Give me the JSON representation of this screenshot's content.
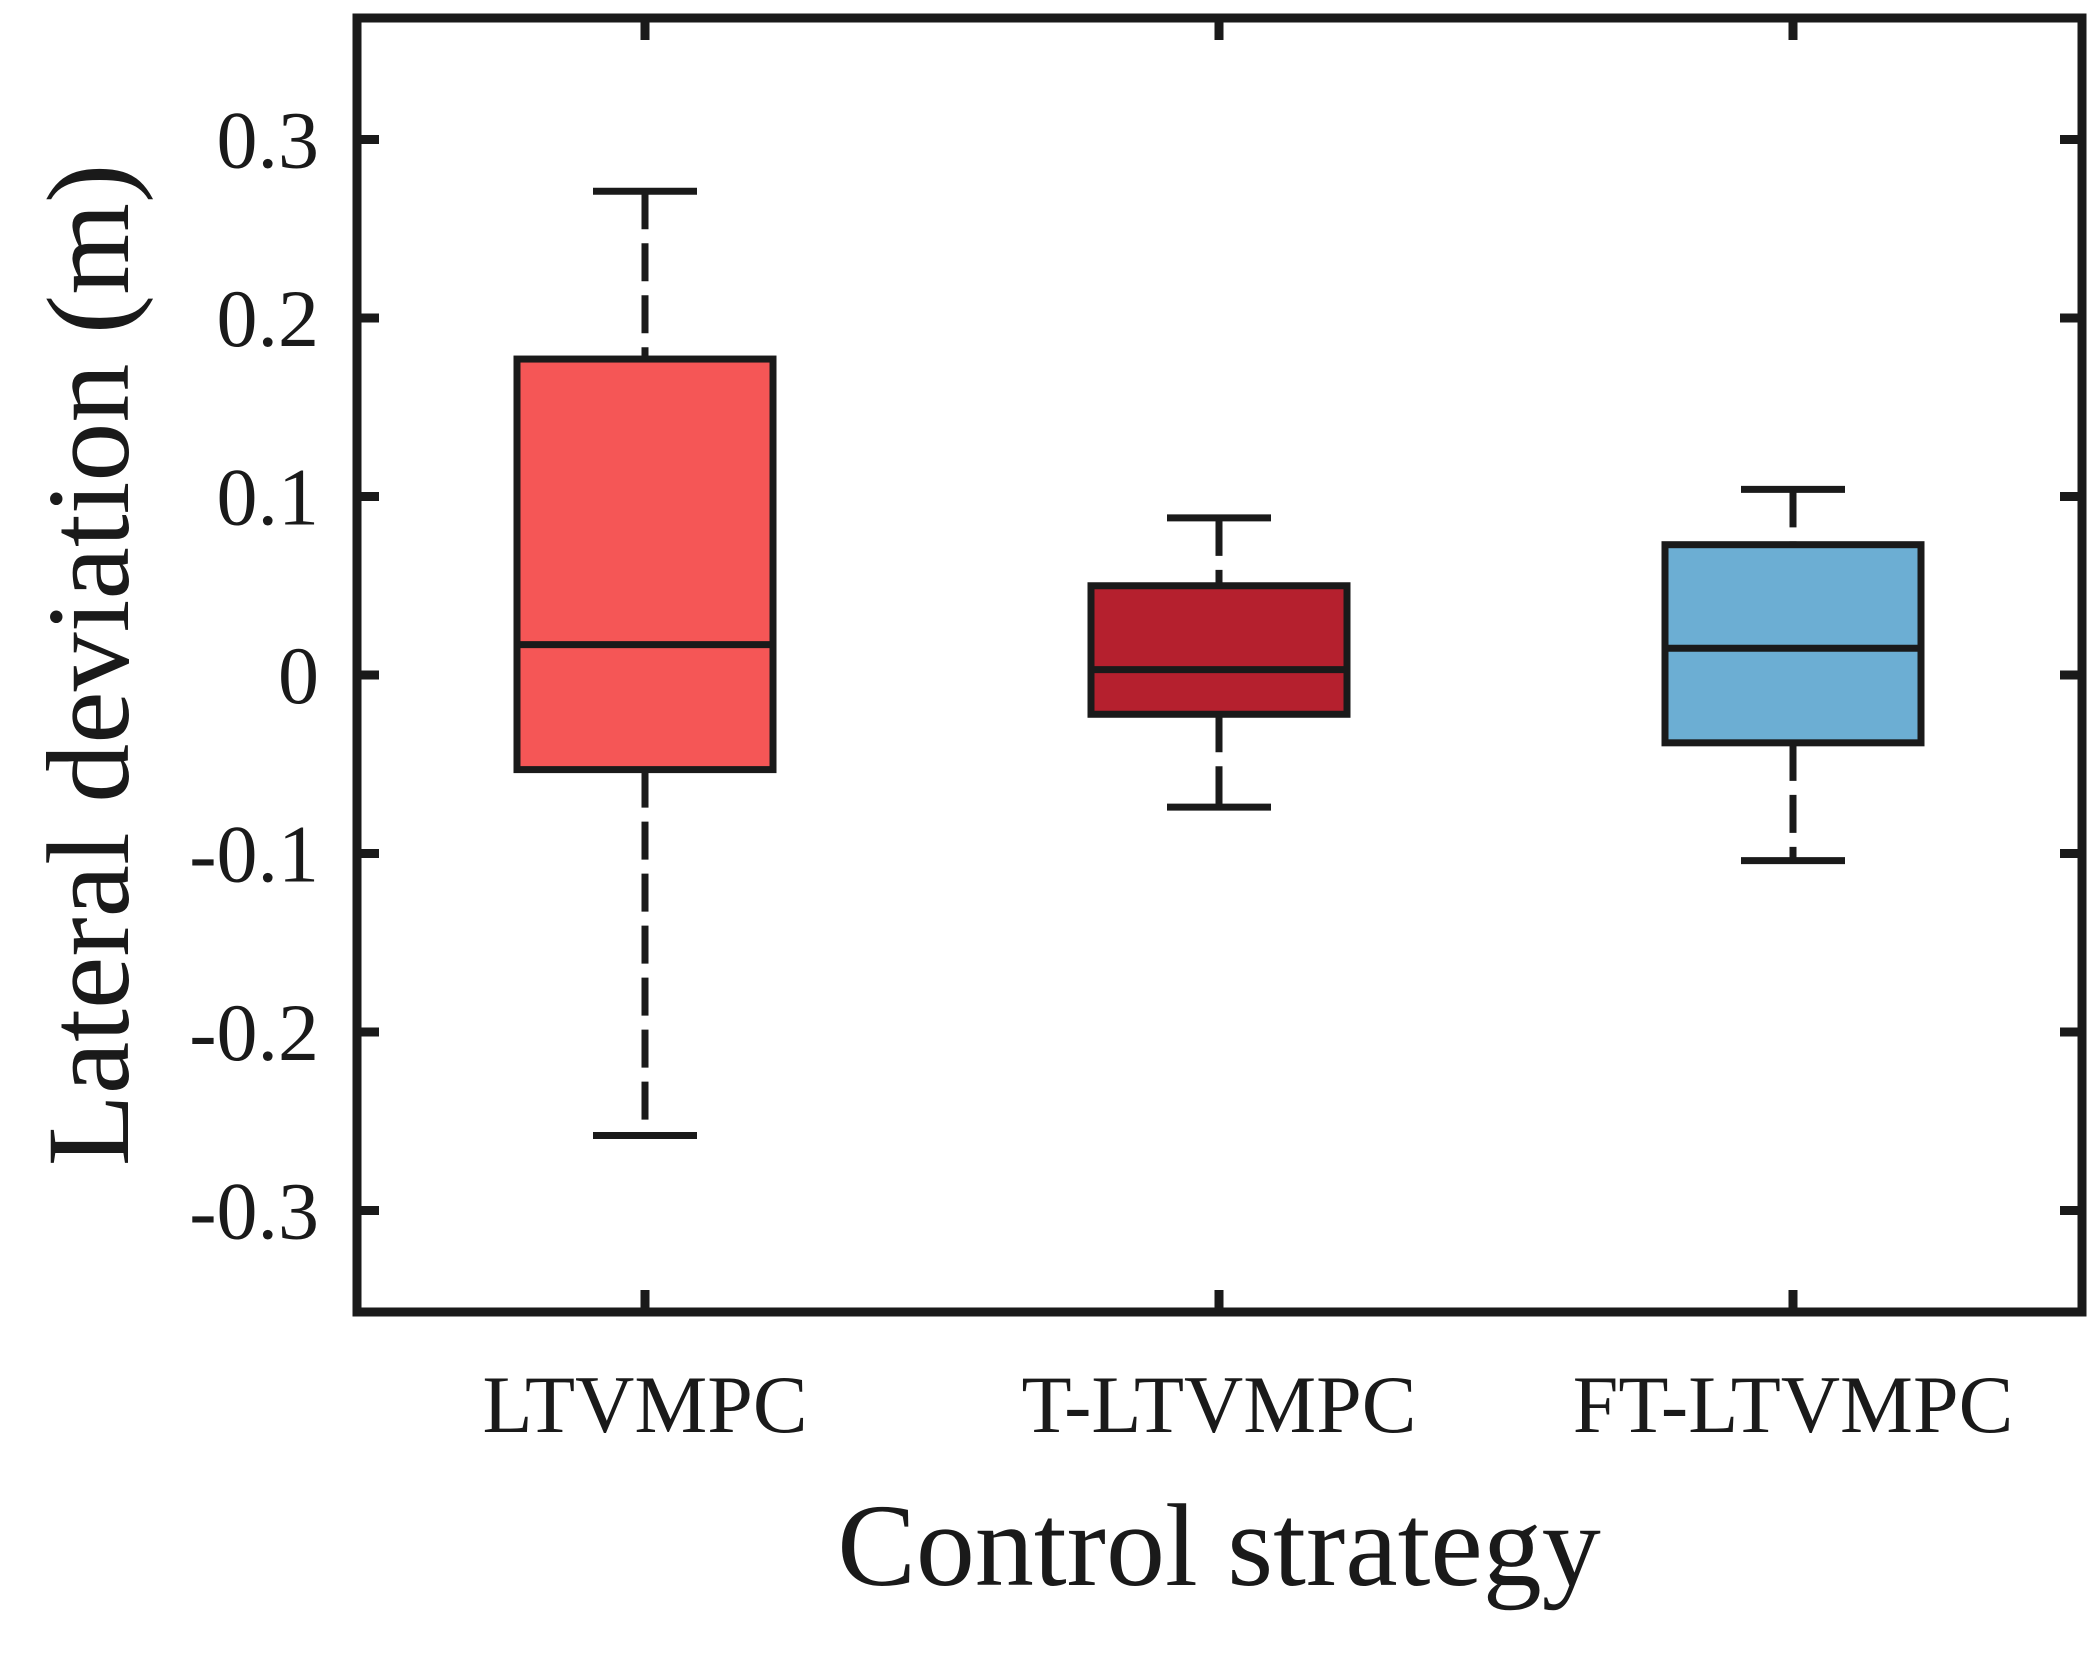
{
  "chart_data": {
    "type": "box",
    "title": "",
    "xlabel": "Control strategy",
    "ylabel": "Lateral deviation (m)",
    "ylim": [
      -0.37,
      0.37
    ],
    "yticks": [
      -0.3,
      -0.2,
      -0.1,
      0,
      0.1,
      0.2,
      0.3
    ],
    "ytick_labels": [
      "-0.3",
      "-0.2",
      "-0.1",
      "0",
      "0.1",
      "0.2",
      "0.3"
    ],
    "grid": false,
    "categories": [
      "LTVMPC",
      "T-LTVMPC",
      "FT-LTVMPC"
    ],
    "series": [
      {
        "name": "LTVMPC",
        "color": "#f55656",
        "whisker_low": -0.258,
        "q1": -0.053,
        "median": 0.017,
        "q3": 0.177,
        "whisker_high": 0.271
      },
      {
        "name": "T-LTVMPC",
        "color": "#b5202e",
        "whisker_low": -0.074,
        "q1": -0.022,
        "median": 0.003,
        "q3": 0.05,
        "whisker_high": 0.088
      },
      {
        "name": "FT-LTVMPC",
        "color": "#6caed3",
        "whisker_low": -0.104,
        "q1": -0.038,
        "median": 0.015,
        "q3": 0.073,
        "whisker_high": 0.104
      }
    ]
  }
}
